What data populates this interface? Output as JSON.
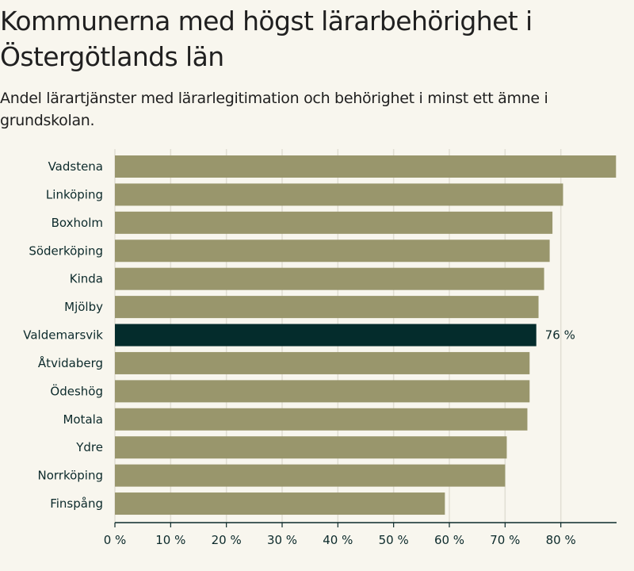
{
  "header": {
    "title": "Kommunerna med högst lärarbehörighet i Östergötlands län",
    "subtitle": "Andel lärartjänster med lärarlegitimation och behörighet i minst ett ämne i grundskolan."
  },
  "chart_data": {
    "type": "bar",
    "orientation": "horizontal",
    "title": "Kommunerna med högst lärarbehörighet i Östergötlands län",
    "subtitle": "Andel lärartjänster med lärarlegitimation och behörighet i minst ett ämne i grundskolan.",
    "xlabel": "",
    "ylabel": "",
    "unit": "%",
    "xlim": [
      0,
      90
    ],
    "ticks": [
      0,
      10,
      20,
      30,
      40,
      50,
      60,
      70,
      80
    ],
    "tick_labels": [
      "0 %",
      "10 %",
      "20 %",
      "30 %",
      "40 %",
      "50 %",
      "60 %",
      "70 %",
      "80 %"
    ],
    "grid": true,
    "categories": [
      "Vadstena",
      "Linköping",
      "Boxholm",
      "Söderköping",
      "Kinda",
      "Mjölby",
      "Valdemarsvik",
      "Åtvidaberg",
      "Ödeshög",
      "Motala",
      "Ydre",
      "Norrköping",
      "Finspång"
    ],
    "values": [
      89.9,
      80.4,
      78.5,
      78.0,
      77.0,
      76.0,
      75.6,
      74.4,
      74.4,
      74.0,
      70.3,
      70.0,
      59.2
    ],
    "highlight": {
      "category": "Valdemarsvik",
      "label": "76 %"
    },
    "colors": {
      "bar": "#99966c",
      "highlight": "#042c2c",
      "grid": "#e1ded3",
      "axis": "#0c2a2b",
      "text": "#0c2a2b",
      "background": "#f8f6ee"
    }
  }
}
